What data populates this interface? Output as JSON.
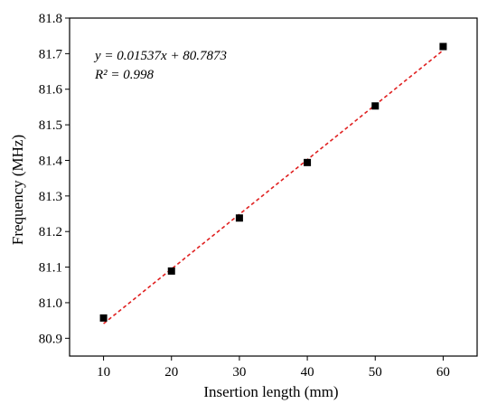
{
  "chart_data": {
    "type": "scatter",
    "title": "",
    "xlabel": "Insertion length (mm)",
    "ylabel": "Frequency (MHz)",
    "xlim": [
      5,
      65
    ],
    "ylim": [
      80.85,
      81.8
    ],
    "x_ticks": [
      10,
      20,
      30,
      40,
      50,
      60
    ],
    "y_ticks": [
      80.9,
      81.0,
      81.1,
      81.2,
      81.3,
      81.4,
      81.5,
      81.6,
      81.7,
      81.8
    ],
    "x_tick_labels": [
      "10",
      "20",
      "30",
      "40",
      "50",
      "60"
    ],
    "y_tick_labels": [
      "80.9",
      "81.0",
      "81.1",
      "81.2",
      "81.3",
      "81.4",
      "81.5",
      "81.6",
      "81.7",
      "81.8"
    ],
    "grid": false,
    "series": [
      {
        "marker": "square",
        "color": "#000000",
        "x": [
          10,
          20,
          30,
          40,
          50,
          60
        ],
        "y": [
          80.957,
          81.089,
          81.238,
          81.394,
          81.553,
          81.72
        ]
      }
    ],
    "fit": {
      "type": "linear",
      "slope": 0.01537,
      "intercept": 80.7873,
      "color": "#e02020",
      "style": "dashed",
      "equation_label": "y = 0.01537x + 80.7873",
      "r2_label": "R² = 0.998"
    }
  }
}
